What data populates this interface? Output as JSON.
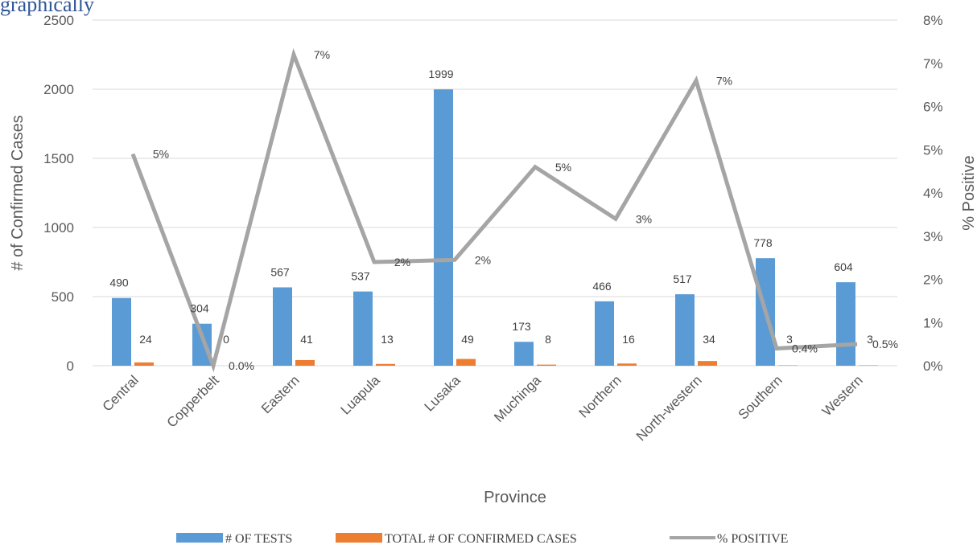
{
  "heading_fragment": "graphically",
  "chart_data": {
    "type": "bar",
    "categories": [
      "Central",
      "Copperbelt",
      "Eastern",
      "Luapula",
      "Lusaka",
      "Muchinga",
      "Northern",
      "North-western",
      "Southern",
      "Western"
    ],
    "series": [
      {
        "name": "# OF TESTS",
        "kind": "bar",
        "axis": "left",
        "color": "#5b9bd5",
        "values": [
          490,
          304,
          567,
          537,
          1999,
          173,
          466,
          517,
          778,
          604
        ],
        "labels": [
          "490",
          "304",
          "567",
          "537",
          "1999",
          "173",
          "466",
          "517",
          "778",
          "604"
        ]
      },
      {
        "name": "TOTAL # OF CONFIRMED CASES",
        "kind": "bar",
        "axis": "left",
        "color": "#ed7d31",
        "values": [
          24,
          0,
          41,
          13,
          49,
          8,
          16,
          34,
          3,
          3
        ],
        "labels": [
          "24",
          "0",
          "41",
          "13",
          "49",
          "8",
          "16",
          "34",
          "3",
          "3"
        ]
      },
      {
        "name": "% POSITIVE",
        "kind": "line",
        "axis": "right",
        "color": "#a5a5a5",
        "values": [
          4.9,
          0.0,
          7.2,
          2.4,
          2.45,
          4.6,
          3.4,
          6.6,
          0.4,
          0.5
        ],
        "labels": [
          "5%",
          "0.0%",
          "7%",
          "2%",
          "2%",
          "5%",
          "3%",
          "7%",
          "0.4%",
          "0.5%"
        ]
      }
    ],
    "xlabel": "Province",
    "ylabel": "# of Confirmed Cases",
    "y2label": "% Positive",
    "ylim": [
      0,
      2500
    ],
    "y_ticks": [
      0,
      500,
      1000,
      1500,
      2000,
      2500
    ],
    "y2lim": [
      0,
      8
    ],
    "y2_ticks": [
      "0%",
      "1%",
      "2%",
      "3%",
      "4%",
      "5%",
      "6%",
      "7%",
      "8%"
    ],
    "grid": true,
    "legend_position": "bottom"
  }
}
